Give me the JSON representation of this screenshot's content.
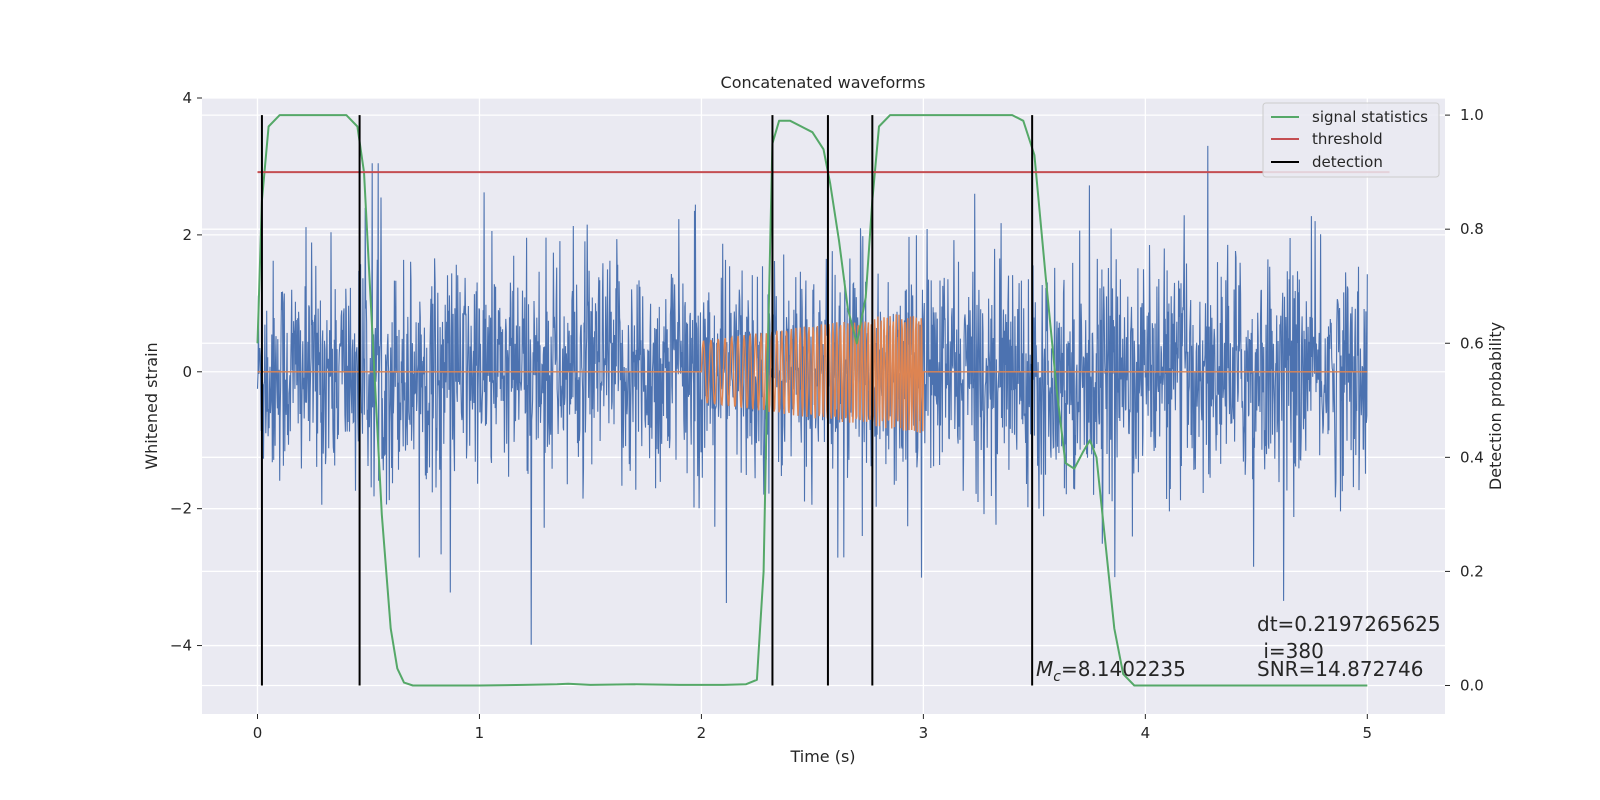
{
  "chart_data": {
    "type": "line",
    "title": "Concatenated waveforms",
    "xlabel": "Time (s)",
    "ylabel_left": "Whitened strain",
    "ylabel_right": "Detection probability",
    "xlim": [
      -0.25,
      5.35
    ],
    "ylim_left": [
      -5.0,
      4.0
    ],
    "ylim_right": [
      -0.05,
      1.03
    ],
    "x_ticks": [
      0,
      1,
      2,
      3,
      4,
      5
    ],
    "x_tick_labels": [
      "0",
      "1",
      "2",
      "3",
      "4",
      "5"
    ],
    "y_left_ticks": [
      4,
      2,
      0,
      -2,
      -4
    ],
    "y_left_tick_labels": [
      "4",
      "2",
      "0",
      "−2",
      "−4"
    ],
    "y_right_ticks": [
      1.0,
      0.8,
      0.6,
      0.4,
      0.2,
      0.0
    ],
    "y_right_tick_labels": [
      "1.0",
      "0.8",
      "0.6",
      "0.4",
      "0.2",
      "0.0"
    ],
    "grid": true,
    "legend_placement": "top-right",
    "legend": [
      {
        "label": "signal statistics",
        "color": "#55a868"
      },
      {
        "label": "threshold",
        "color": "#c44e52"
      },
      {
        "label": "detection",
        "color": "#000000"
      }
    ],
    "series": [
      {
        "id": "whitened-strain",
        "axis": "left",
        "color": "#4c72b0",
        "noise": {
          "x_start": 0,
          "x_end": 5,
          "sigma": 0.8
        }
      },
      {
        "id": "injected-waveform",
        "axis": "left",
        "color": "#dd8452",
        "chirp": {
          "x_start": 2.0,
          "x_end": 3.0,
          "amp_start": 0.45,
          "amp_end": 0.9,
          "freq_start": 28,
          "freq_end": 45
        }
      },
      {
        "name": "signal statistics",
        "axis": "right",
        "color": "#55a868",
        "x": [
          0,
          0.02,
          0.05,
          0.1,
          0.2,
          0.4,
          0.45,
          0.48,
          0.52,
          0.56,
          0.6,
          0.63,
          0.66,
          0.7,
          0.8,
          1.0,
          1.2,
          1.35,
          1.4,
          1.5,
          1.7,
          1.9,
          2.1,
          2.2,
          2.25,
          2.28,
          2.3,
          2.32,
          2.35,
          2.4,
          2.5,
          2.55,
          2.58,
          2.62,
          2.66,
          2.7,
          2.74,
          2.77,
          2.8,
          2.85,
          3.0,
          3.2,
          3.4,
          3.45,
          3.5,
          3.55,
          3.6,
          3.64,
          3.68,
          3.72,
          3.75,
          3.78,
          3.82,
          3.86,
          3.9,
          3.95,
          4.0,
          4.5,
          5.0
        ],
        "y": [
          0.6,
          0.85,
          0.98,
          1.0,
          1.0,
          1.0,
          0.98,
          0.9,
          0.6,
          0.3,
          0.1,
          0.03,
          0.005,
          0.0,
          0.0,
          0.0,
          0.001,
          0.002,
          0.003,
          0.001,
          0.002,
          0.001,
          0.001,
          0.002,
          0.01,
          0.2,
          0.6,
          0.95,
          0.99,
          0.99,
          0.97,
          0.94,
          0.88,
          0.78,
          0.66,
          0.6,
          0.68,
          0.85,
          0.98,
          1.0,
          1.0,
          1.0,
          1.0,
          0.99,
          0.93,
          0.72,
          0.52,
          0.39,
          0.38,
          0.41,
          0.43,
          0.4,
          0.25,
          0.1,
          0.02,
          0.0,
          0.0,
          0.0,
          0.0
        ]
      },
      {
        "name": "threshold",
        "axis": "right",
        "color": "#c44e52",
        "x": [
          0,
          5.1
        ],
        "y": [
          0.9,
          0.9
        ]
      }
    ],
    "detections": {
      "color": "#000000",
      "x": [
        0.02,
        0.46,
        2.32,
        2.57,
        2.77,
        3.49
      ],
      "y_range_right": [
        0.0,
        1.0
      ]
    },
    "annotations": {
      "mc_symbol": "M",
      "mc_subscript": "c",
      "mc_value": "=8.1402235",
      "dt": "dt=0.2197265625",
      "i": " i=380",
      "snr": "SNR=14.872746"
    }
  }
}
